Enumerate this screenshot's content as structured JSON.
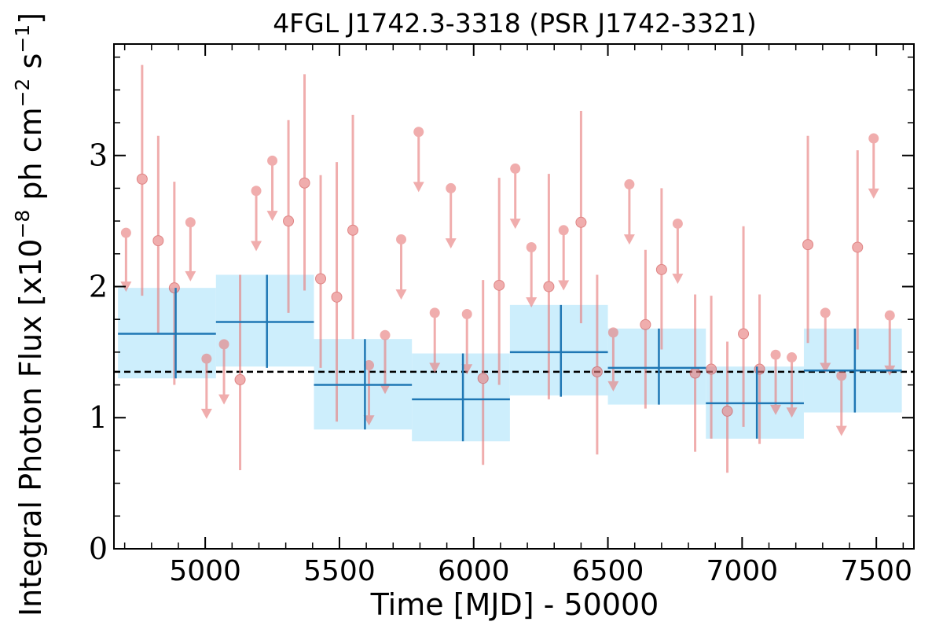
{
  "chart_data": {
    "type": "scatter",
    "title": "4FGL J1742.3-3318 (PSR J1742-3321)",
    "xlabel": "Time [MJD] - 50000",
    "ylabel_parts": {
      "prefix": "Integral Photon Flux [x10",
      "exp1": "−8",
      "mid": " ph cm",
      "exp2": "−2",
      "mid2": " s",
      "exp3": "−1",
      "suffix": "]"
    },
    "xlim": [
      4660,
      7640
    ],
    "ylim": [
      0,
      3.85
    ],
    "xticks": [
      5000,
      5500,
      6000,
      6500,
      7000,
      7500
    ],
    "xtick_labels": [
      "5000",
      "5500",
      "6000",
      "6500",
      "7000",
      "7500"
    ],
    "yticks": [
      0,
      1,
      2,
      3
    ],
    "ytick_labels": [
      "0",
      "1",
      "2",
      "3"
    ],
    "mean_flux": 1.35,
    "colors": {
      "points": "#e77c7c",
      "bins": "#1f77b4",
      "bin_fill": "#cdeefc",
      "mean_line": "#000000"
    },
    "yearly_bins": [
      {
        "x0": 4675,
        "x1": 5040,
        "x": 4890,
        "y": 1.64,
        "ylo": 1.3,
        "yhi": 1.99,
        "band_lo": 1.3,
        "band_hi": 1.99
      },
      {
        "x0": 5040,
        "x1": 5405,
        "x": 5230,
        "y": 1.73,
        "ylo": 1.38,
        "yhi": 2.09,
        "band_lo": 1.39,
        "band_hi": 2.09
      },
      {
        "x0": 5405,
        "x1": 5770,
        "x": 5595,
        "y": 1.25,
        "ylo": 0.91,
        "yhi": 1.6,
        "band_lo": 0.91,
        "band_hi": 1.6
      },
      {
        "x0": 5770,
        "x1": 6135,
        "x": 5960,
        "y": 1.14,
        "ylo": 0.82,
        "yhi": 1.49,
        "band_lo": 0.82,
        "band_hi": 1.49
      },
      {
        "x0": 6135,
        "x1": 6500,
        "x": 6325,
        "y": 1.5,
        "ylo": 1.16,
        "yhi": 1.86,
        "band_lo": 1.17,
        "band_hi": 1.86
      },
      {
        "x0": 6500,
        "x1": 6865,
        "x": 6690,
        "y": 1.38,
        "ylo": 1.1,
        "yhi": 1.68,
        "band_lo": 1.1,
        "band_hi": 1.68
      },
      {
        "x0": 6865,
        "x1": 7230,
        "x": 7055,
        "y": 1.11,
        "ylo": 0.84,
        "yhi": 1.39,
        "band_lo": 0.84,
        "band_hi": 1.39
      },
      {
        "x0": 7230,
        "x1": 7595,
        "x": 7420,
        "y": 1.36,
        "ylo": 1.04,
        "yhi": 1.68,
        "band_lo": 1.04,
        "band_hi": 1.68
      }
    ],
    "monthly_points": [
      {
        "x": 4705,
        "y": 2.41,
        "upper_limit": true,
        "arrow_to": 1.96
      },
      {
        "x": 4765,
        "y": 2.82,
        "ylo": 1.93,
        "yhi": 3.69
      },
      {
        "x": 4825,
        "y": 2.35,
        "ylo": 1.64,
        "yhi": 3.15
      },
      {
        "x": 4885,
        "y": 1.99,
        "ylo": 1.25,
        "yhi": 2.8
      },
      {
        "x": 4945,
        "y": 2.49,
        "upper_limit": true,
        "arrow_to": 2.04
      },
      {
        "x": 5005,
        "y": 1.45,
        "upper_limit": true,
        "arrow_to": 0.99
      },
      {
        "x": 5070,
        "y": 1.56,
        "upper_limit": true,
        "arrow_to": 1.1
      },
      {
        "x": 5130,
        "y": 1.29,
        "ylo": 0.6,
        "yhi": 2.09
      },
      {
        "x": 5190,
        "y": 2.73,
        "upper_limit": true,
        "arrow_to": 2.27
      },
      {
        "x": 5250,
        "y": 2.96,
        "upper_limit": true,
        "arrow_to": 2.5
      },
      {
        "x": 5310,
        "y": 2.5,
        "ylo": 1.8,
        "yhi": 3.27
      },
      {
        "x": 5370,
        "y": 2.79,
        "ylo": 1.97,
        "yhi": 3.62
      },
      {
        "x": 5430,
        "y": 2.06,
        "ylo": 1.38,
        "yhi": 2.85
      },
      {
        "x": 5490,
        "y": 1.92,
        "ylo": 0.97,
        "yhi": 2.95
      },
      {
        "x": 5550,
        "y": 2.43,
        "ylo": 1.6,
        "yhi": 3.31
      },
      {
        "x": 5610,
        "y": 1.4,
        "upper_limit": true,
        "arrow_to": 0.94
      },
      {
        "x": 5670,
        "y": 1.63,
        "upper_limit": true,
        "arrow_to": 1.18
      },
      {
        "x": 5730,
        "y": 2.36,
        "upper_limit": true,
        "arrow_to": 1.9
      },
      {
        "x": 5795,
        "y": 3.18,
        "upper_limit": true,
        "arrow_to": 2.72
      },
      {
        "x": 5855,
        "y": 1.8,
        "upper_limit": true,
        "arrow_to": 1.34
      },
      {
        "x": 5915,
        "y": 2.75,
        "upper_limit": true,
        "arrow_to": 2.29
      },
      {
        "x": 5975,
        "y": 1.79,
        "upper_limit": true,
        "arrow_to": 1.33
      },
      {
        "x": 6035,
        "y": 1.3,
        "ylo": 0.64,
        "yhi": 2.05
      },
      {
        "x": 6095,
        "y": 2.01,
        "ylo": 1.25,
        "yhi": 2.83
      },
      {
        "x": 6155,
        "y": 2.9,
        "upper_limit": true,
        "arrow_to": 2.44
      },
      {
        "x": 6215,
        "y": 2.3,
        "upper_limit": true,
        "arrow_to": 1.84
      },
      {
        "x": 6280,
        "y": 2.0,
        "ylo": 1.14,
        "yhi": 2.86
      },
      {
        "x": 6335,
        "y": 2.43,
        "upper_limit": true,
        "arrow_to": 1.97
      },
      {
        "x": 6400,
        "y": 2.49,
        "ylo": 1.72,
        "yhi": 3.34
      },
      {
        "x": 6460,
        "y": 1.35,
        "ylo": 0.72,
        "yhi": 2.09
      },
      {
        "x": 6520,
        "y": 1.65,
        "upper_limit": true,
        "arrow_to": 1.2
      },
      {
        "x": 6580,
        "y": 2.78,
        "upper_limit": true,
        "arrow_to": 2.32
      },
      {
        "x": 6640,
        "y": 1.71,
        "ylo": 1.07,
        "yhi": 2.28
      },
      {
        "x": 6700,
        "y": 2.13,
        "ylo": 1.52,
        "yhi": 2.75
      },
      {
        "x": 6760,
        "y": 2.48,
        "upper_limit": true,
        "arrow_to": 2.02
      },
      {
        "x": 6825,
        "y": 1.34,
        "ylo": 0.74,
        "yhi": 1.94
      },
      {
        "x": 6885,
        "y": 1.37,
        "ylo": 0.84,
        "yhi": 1.93
      },
      {
        "x": 6945,
        "y": 1.05,
        "ylo": 0.58,
        "yhi": 1.58
      },
      {
        "x": 7005,
        "y": 1.64,
        "ylo": 0.93,
        "yhi": 2.46
      },
      {
        "x": 7065,
        "y": 1.37,
        "ylo": 0.8,
        "yhi": 1.94
      },
      {
        "x": 7125,
        "y": 1.48,
        "upper_limit": true,
        "arrow_to": 1.02
      },
      {
        "x": 7185,
        "y": 1.46,
        "upper_limit": true,
        "arrow_to": 1.0
      },
      {
        "x": 7245,
        "y": 2.32,
        "ylo": 1.57,
        "yhi": 3.15
      },
      {
        "x": 7310,
        "y": 1.8,
        "upper_limit": true,
        "arrow_to": 1.34
      },
      {
        "x": 7370,
        "y": 1.32,
        "upper_limit": true,
        "arrow_to": 0.86
      },
      {
        "x": 7430,
        "y": 2.3,
        "ylo": 1.52,
        "yhi": 3.04
      },
      {
        "x": 7490,
        "y": 3.13,
        "upper_limit": true,
        "arrow_to": 2.67
      },
      {
        "x": 7550,
        "y": 1.78,
        "upper_limit": true,
        "arrow_to": 1.32
      }
    ]
  }
}
